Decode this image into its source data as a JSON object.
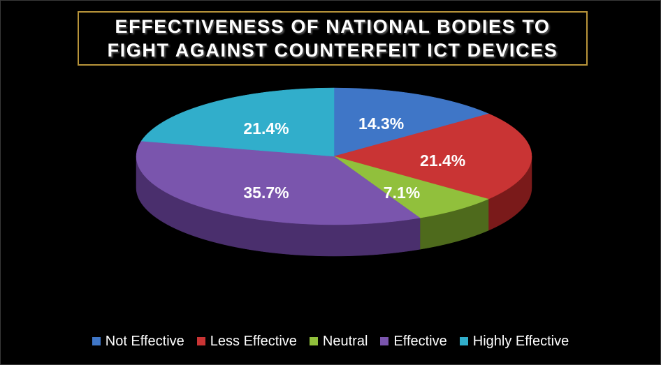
{
  "chart_data": {
    "type": "pie",
    "title_lines": [
      "EFFECTIVENESS OF NATIONAL BODIES TO",
      "FIGHT AGAINST COUNTERFEIT ICT DEVICES"
    ],
    "categories": [
      "Not Effective",
      "Less Effective",
      "Neutral",
      "Effective",
      "Highly Effective"
    ],
    "values": [
      14.3,
      21.4,
      7.1,
      35.7,
      21.4
    ],
    "value_labels": [
      "14.3%",
      "21.4%",
      "7.1%",
      "35.7%",
      "21.4%"
    ],
    "colors": [
      "#3f76c7",
      "#c93434",
      "#91c03c",
      "#7a55ad",
      "#31aecb"
    ],
    "dark_colors": [
      "#22457a",
      "#7a1a1a",
      "#4e6a1c",
      "#4a2f6d",
      "#1a6f82"
    ],
    "legend_position": "bottom",
    "three_d": true
  }
}
